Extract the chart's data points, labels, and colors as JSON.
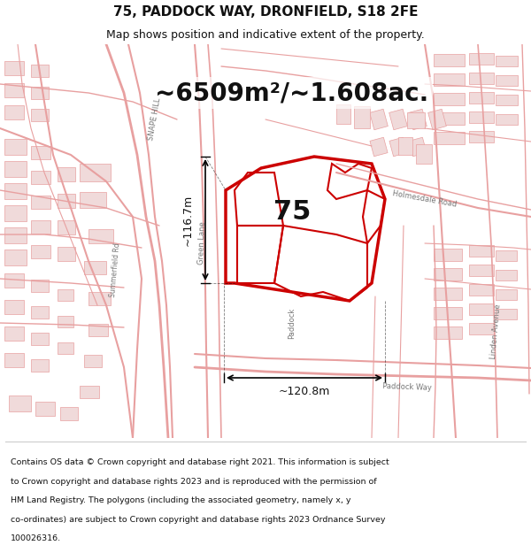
{
  "title": "75, PADDOCK WAY, DRONFIELD, S18 2FE",
  "subtitle": "Map shows position and indicative extent of the property.",
  "area_label": "~6509m²/~1.608ac.",
  "plot_number": "75",
  "dim_horizontal": "~120.8m",
  "dim_vertical": "~116.7m",
  "footer_lines": [
    "Contains OS data © Crown copyright and database right 2021. This information is subject",
    "to Crown copyright and database rights 2023 and is reproduced with the permission of",
    "HM Land Registry. The polygons (including the associated geometry, namely x, y",
    "co-ordinates) are subject to Crown copyright and database rights 2023 Ordnance Survey",
    "100026316."
  ],
  "map_bg": "#f5f0ea",
  "road_color": "#e8a0a0",
  "building_fill": "#f0dada",
  "building_edge": "#e8a0a0",
  "highlight_color": "#cc0000",
  "text_color_dark": "#111111",
  "text_color_gray": "#777777"
}
